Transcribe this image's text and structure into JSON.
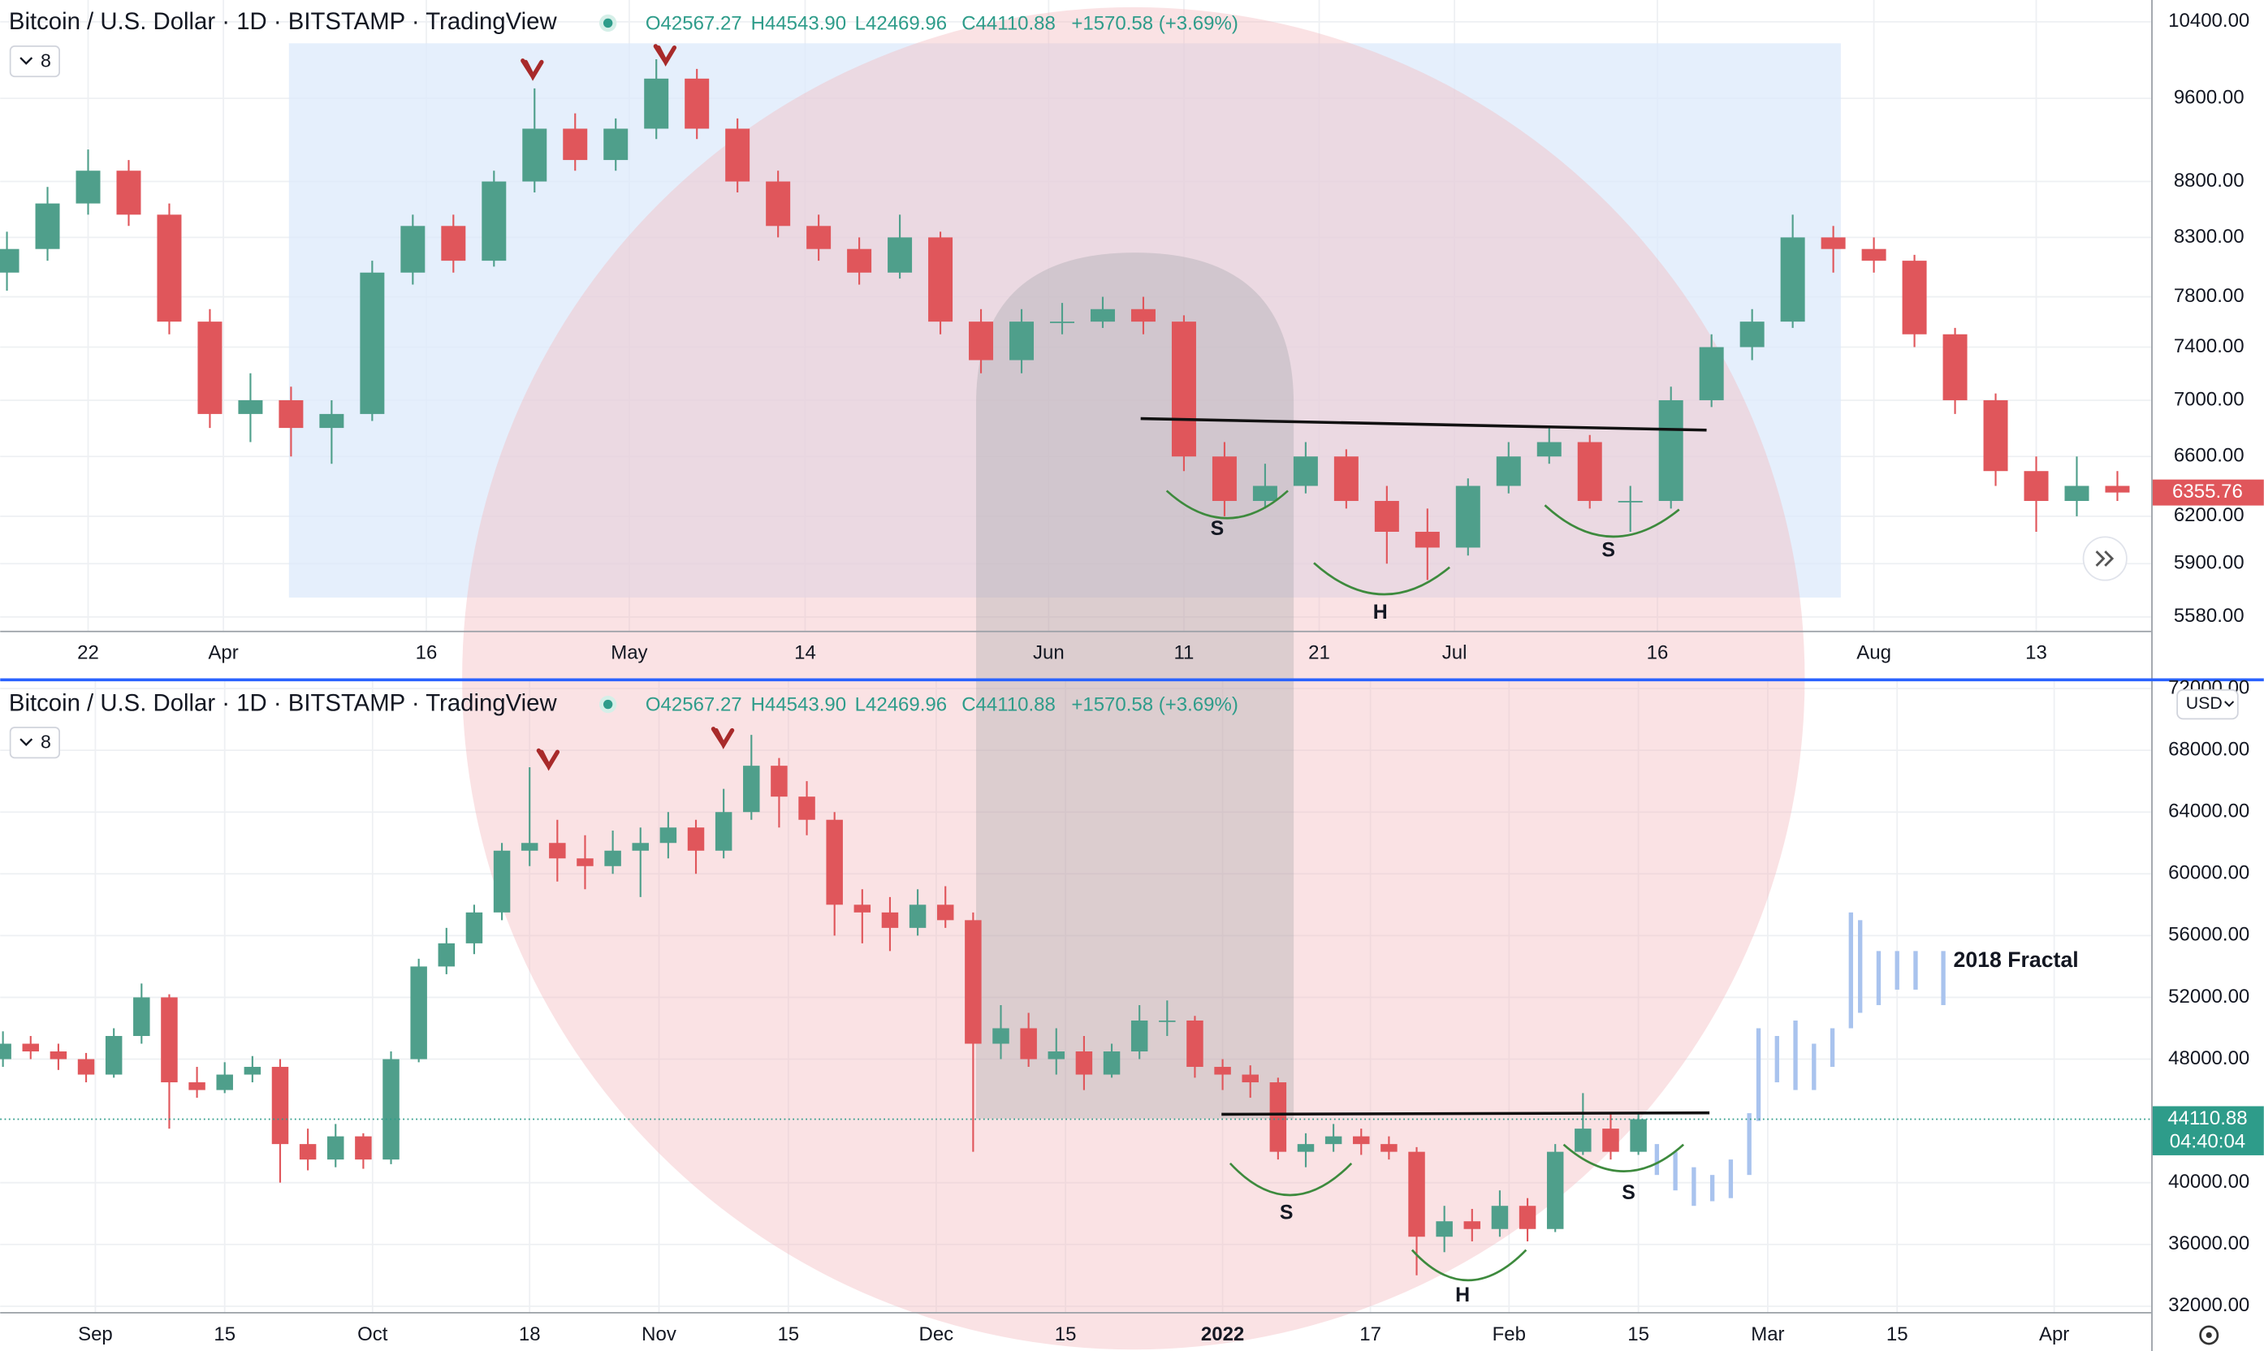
{
  "chart_data": [
    {
      "type": "candlestick",
      "title": "Bitcoin / U.S. Dollar · 1D · BITSTAMP · TradingView",
      "ohlc_legend": [
        "O42567.27",
        "H44543.90",
        "L42469.96",
        "C44110.88",
        "+1570.58 (+3.69%)"
      ],
      "indicator_count": 8,
      "log_scale": true,
      "grid": true,
      "up_color": "#4f9f8b",
      "down_color": "#e0565b",
      "xlim": [
        -0.5,
        158.5
      ],
      "xticks": [
        {
          "value": 6,
          "label": "22"
        },
        {
          "value": 16,
          "label": "Apr"
        },
        {
          "value": 31,
          "label": "16"
        },
        {
          "value": 46,
          "label": "May"
        },
        {
          "value": 59,
          "label": "14"
        },
        {
          "value": 77,
          "label": "Jun"
        },
        {
          "value": 87,
          "label": "11"
        },
        {
          "value": 97,
          "label": "21"
        },
        {
          "value": 107,
          "label": "Jul"
        },
        {
          "value": 122,
          "label": "16"
        },
        {
          "value": 138,
          "label": "Aug"
        },
        {
          "value": 150,
          "label": "13"
        }
      ],
      "ylim": [
        5500,
        10640
      ],
      "yticks": [
        {
          "value": 10400,
          "label": "10400.00"
        },
        {
          "value": 9600,
          "label": "9600.00"
        },
        {
          "value": 8800,
          "label": "8800.00"
        },
        {
          "value": 8300,
          "label": "8300.00"
        },
        {
          "value": 7800,
          "label": "7800.00"
        },
        {
          "value": 7400,
          "label": "7400.00"
        },
        {
          "value": 7000,
          "label": "7000.00"
        },
        {
          "value": 6600,
          "label": "6600.00"
        },
        {
          "value": 6200,
          "label": "6200.00"
        },
        {
          "value": 5900,
          "label": "5900.00"
        },
        {
          "value": 5580,
          "label": "5580.00"
        }
      ],
      "x": [
        0,
        3,
        6,
        9,
        12,
        15,
        18,
        21,
        24,
        27,
        30,
        33,
        36,
        39,
        42,
        45,
        48,
        51,
        54,
        57,
        60,
        63,
        66,
        69,
        72,
        75,
        78,
        81,
        84,
        87,
        90,
        93,
        96,
        99,
        102,
        105,
        108,
        111,
        114,
        117,
        120,
        123,
        126,
        129,
        132,
        135,
        138,
        141,
        144,
        147,
        150,
        153,
        156
      ],
      "ohlc": [
        [
          8000,
          8350,
          7850,
          8200
        ],
        [
          8200,
          8750,
          8100,
          8600
        ],
        [
          8600,
          9100,
          8500,
          8900
        ],
        [
          8900,
          9000,
          8400,
          8500
        ],
        [
          8500,
          8600,
          7500,
          7600
        ],
        [
          7600,
          7700,
          6800,
          6900
        ],
        [
          6900,
          7200,
          6700,
          7000
        ],
        [
          7000,
          7100,
          6600,
          6800
        ],
        [
          6800,
          7000,
          6550,
          6900
        ],
        [
          6900,
          8100,
          6850,
          8000
        ],
        [
          8000,
          8500,
          7900,
          8400
        ],
        [
          8400,
          8500,
          8000,
          8100
        ],
        [
          8100,
          8900,
          8050,
          8800
        ],
        [
          8800,
          9700,
          8700,
          9300
        ],
        [
          9300,
          9450,
          8900,
          9000
        ],
        [
          9000,
          9400,
          8900,
          9300
        ],
        [
          9300,
          10000,
          9200,
          9800
        ],
        [
          9800,
          9900,
          9200,
          9300
        ],
        [
          9300,
          9400,
          8700,
          8800
        ],
        [
          8800,
          8900,
          8300,
          8400
        ],
        [
          8400,
          8500,
          8100,
          8200
        ],
        [
          8200,
          8300,
          7900,
          8000
        ],
        [
          8000,
          8500,
          7950,
          8300
        ],
        [
          8300,
          8350,
          7500,
          7600
        ],
        [
          7600,
          7700,
          7200,
          7300
        ],
        [
          7300,
          7700,
          7200,
          7600
        ],
        [
          7600,
          7750,
          7500,
          7600
        ],
        [
          7600,
          7800,
          7550,
          7700
        ],
        [
          7700,
          7800,
          7500,
          7600
        ],
        [
          7600,
          7650,
          6500,
          6600
        ],
        [
          6600,
          6700,
          6200,
          6300
        ],
        [
          6300,
          6550,
          6250,
          6400
        ],
        [
          6400,
          6700,
          6350,
          6600
        ],
        [
          6600,
          6650,
          6250,
          6300
        ],
        [
          6300,
          6400,
          5900,
          6100
        ],
        [
          6100,
          6250,
          5800,
          6000
        ],
        [
          6000,
          6450,
          5950,
          6400
        ],
        [
          6400,
          6700,
          6350,
          6600
        ],
        [
          6600,
          6800,
          6550,
          6700
        ],
        [
          6700,
          6750,
          6250,
          6300
        ],
        [
          6300,
          6400,
          6100,
          6300
        ],
        [
          6300,
          7100,
          6250,
          7000
        ],
        [
          7000,
          7500,
          6950,
          7400
        ],
        [
          7400,
          7700,
          7300,
          7600
        ],
        [
          7600,
          8500,
          7550,
          8300
        ],
        [
          8300,
          8400,
          8000,
          8200
        ],
        [
          8200,
          8300,
          8000,
          8100
        ],
        [
          8100,
          8150,
          7400,
          7500
        ],
        [
          7500,
          7550,
          6900,
          7000
        ],
        [
          7000,
          7050,
          6400,
          6500
        ],
        [
          6500,
          6600,
          6100,
          6300
        ],
        [
          6300,
          6600,
          6200,
          6400
        ],
        [
          6400,
          6500,
          6300,
          6355.76
        ]
      ],
      "last_price": 6355.76,
      "annotations": [
        "S",
        "H",
        "S"
      ]
    },
    {
      "type": "candlestick",
      "title": "Bitcoin / U.S. Dollar · 1D · BITSTAMP · TradingView",
      "ohlc_legend": [
        "O42567.27",
        "H44543.90",
        "L42469.96",
        "C44110.88",
        "+1570.58 (+3.69%)"
      ],
      "indicator_count": 8,
      "currency": "USD",
      "log_scale": false,
      "grid": true,
      "up_color": "#4f9f8b",
      "down_color": "#e0565b",
      "xlim": [
        -0.3,
        232.5
      ],
      "xticks": [
        {
          "value": 10,
          "label": "Sep"
        },
        {
          "value": 24,
          "label": "15"
        },
        {
          "value": 40,
          "label": "Oct"
        },
        {
          "value": 57,
          "label": "18"
        },
        {
          "value": 71,
          "label": "Nov"
        },
        {
          "value": 85,
          "label": "15"
        },
        {
          "value": 101,
          "label": "Dec"
        },
        {
          "value": 115,
          "label": "15"
        },
        {
          "value": 132,
          "label": "2022"
        },
        {
          "value": 148,
          "label": "17"
        },
        {
          "value": 163,
          "label": "Feb"
        },
        {
          "value": 177,
          "label": "15"
        },
        {
          "value": 191,
          "label": "Mar"
        },
        {
          "value": 205,
          "label": "15"
        },
        {
          "value": 222,
          "label": "Apr"
        }
      ],
      "ylim": [
        31530,
        72470
      ],
      "yticks": [
        {
          "value": 72000,
          "label": "72000.00"
        },
        {
          "value": 68000,
          "label": "68000.00"
        },
        {
          "value": 64000,
          "label": "64000.00"
        },
        {
          "value": 60000,
          "label": "60000.00"
        },
        {
          "value": 56000,
          "label": "56000.00"
        },
        {
          "value": 52000,
          "label": "52000.00"
        },
        {
          "value": 48000,
          "label": "48000.00"
        },
        {
          "value": 40000,
          "label": "40000.00"
        },
        {
          "value": 36000,
          "label": "36000.00"
        },
        {
          "value": 32000,
          "label": "32000.00"
        }
      ],
      "x": [
        0,
        3,
        6,
        9,
        12,
        15,
        18,
        21,
        24,
        27,
        30,
        33,
        36,
        39,
        42,
        45,
        48,
        51,
        54,
        57,
        60,
        63,
        66,
        69,
        72,
        75,
        78,
        81,
        84,
        87,
        90,
        93,
        96,
        99,
        102,
        105,
        108,
        111,
        114,
        117,
        120,
        123,
        126,
        129,
        132,
        135,
        138,
        141,
        144,
        147,
        150,
        153,
        156,
        159,
        162,
        165,
        168,
        171,
        174,
        177
      ],
      "ohlc": [
        [
          48000,
          49800,
          47500,
          49000
        ],
        [
          49000,
          49500,
          48000,
          48500
        ],
        [
          48500,
          49000,
          47300,
          48000
        ],
        [
          48000,
          48400,
          46500,
          47000
        ],
        [
          47000,
          50000,
          46800,
          49500
        ],
        [
          49500,
          52900,
          49000,
          52000
        ],
        [
          52000,
          52200,
          43500,
          46500
        ],
        [
          46500,
          47500,
          45500,
          46000
        ],
        [
          46000,
          47800,
          45800,
          47000
        ],
        [
          47000,
          48200,
          46500,
          47500
        ],
        [
          47500,
          48000,
          40000,
          42500
        ],
        [
          42500,
          43500,
          40800,
          41500
        ],
        [
          41500,
          43800,
          41000,
          43000
        ],
        [
          43000,
          43200,
          40900,
          41500
        ],
        [
          41500,
          48500,
          41200,
          48000
        ],
        [
          48000,
          54500,
          47800,
          54000
        ],
        [
          54000,
          56500,
          53500,
          55500
        ],
        [
          55500,
          58000,
          54800,
          57500
        ],
        [
          57500,
          62000,
          57000,
          61500
        ],
        [
          61500,
          66900,
          60500,
          62000
        ],
        [
          62000,
          63500,
          59500,
          61000
        ],
        [
          61000,
          62500,
          59000,
          60500
        ],
        [
          60500,
          62800,
          60000,
          61500
        ],
        [
          61500,
          63000,
          58500,
          62000
        ],
        [
          62000,
          64000,
          61000,
          63000
        ],
        [
          63000,
          63500,
          60000,
          61500
        ],
        [
          61500,
          65500,
          61000,
          64000
        ],
        [
          64000,
          69000,
          63500,
          67000
        ],
        [
          67000,
          67500,
          63000,
          65000
        ],
        [
          65000,
          66000,
          62500,
          63500
        ],
        [
          63500,
          64000,
          56000,
          58000
        ],
        [
          58000,
          59000,
          55500,
          57500
        ],
        [
          57500,
          58500,
          55000,
          56500
        ],
        [
          56500,
          59000,
          56000,
          58000
        ],
        [
          58000,
          59200,
          56500,
          57000
        ],
        [
          57000,
          57500,
          42000,
          49000
        ],
        [
          49000,
          51500,
          48000,
          50000
        ],
        [
          50000,
          51000,
          47500,
          48000
        ],
        [
          48000,
          50000,
          47000,
          48500
        ],
        [
          48500,
          49500,
          46000,
          47000
        ],
        [
          47000,
          49000,
          46800,
          48500
        ],
        [
          48500,
          51500,
          48000,
          50500
        ],
        [
          50500,
          51800,
          49500,
          50500
        ],
        [
          50500,
          50800,
          46800,
          47500
        ],
        [
          47500,
          48000,
          46000,
          47000
        ],
        [
          47000,
          47600,
          45500,
          46500
        ],
        [
          46500,
          46800,
          41500,
          42000
        ],
        [
          42000,
          43200,
          41000,
          42500
        ],
        [
          42500,
          43800,
          42000,
          43000
        ],
        [
          43000,
          43500,
          41800,
          42500
        ],
        [
          42500,
          43000,
          41500,
          42000
        ],
        [
          42000,
          42300,
          34000,
          36500
        ],
        [
          36500,
          38500,
          35500,
          37500
        ],
        [
          37500,
          38300,
          36200,
          37000
        ],
        [
          37000,
          39500,
          36500,
          38500
        ],
        [
          38500,
          39000,
          36200,
          37000
        ],
        [
          37000,
          42500,
          36800,
          42000
        ],
        [
          42000,
          45800,
          41800,
          43500
        ],
        [
          43500,
          44500,
          41500,
          42000
        ],
        [
          42000,
          44543.9,
          41800,
          44110.88
        ]
      ],
      "series": [
        {
          "name": "2018 Fractal",
          "color": "#a9c3ee",
          "x": [
            179,
            181,
            183,
            185,
            187,
            189,
            190,
            192,
            194,
            196,
            198,
            200,
            201,
            203,
            205,
            207,
            210
          ],
          "values": [
            [
              40500,
              42500
            ],
            [
              39500,
              42000
            ],
            [
              38500,
              41000
            ],
            [
              38800,
              40500
            ],
            [
              39000,
              41500
            ],
            [
              40500,
              44500
            ],
            [
              44000,
              50000
            ],
            [
              46500,
              49500
            ],
            [
              46000,
              50500
            ],
            [
              46000,
              49000
            ],
            [
              47500,
              50000
            ],
            [
              50000,
              57500
            ],
            [
              51000,
              57000
            ],
            [
              51500,
              55000
            ],
            [
              52500,
              55000
            ],
            [
              52500,
              55000
            ],
            [
              51500,
              55000
            ]
          ]
        }
      ],
      "last_price": 44110.88,
      "countdown": "04:40:04",
      "annotations": [
        "S",
        "H",
        "S"
      ]
    }
  ]
}
